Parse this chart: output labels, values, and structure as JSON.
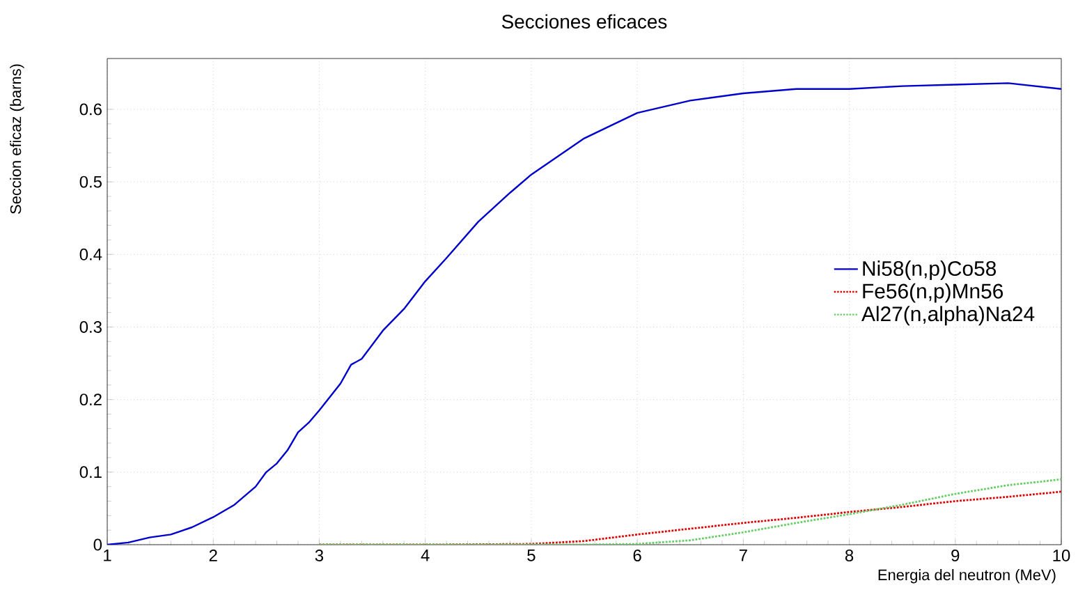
{
  "chart_data": {
    "type": "line",
    "title": "Secciones eficaces",
    "xlabel": "Energia del neutron (MeV)",
    "ylabel": "Seccion eficaz (barns)",
    "xlim": [
      1,
      10
    ],
    "ylim": [
      0,
      0.67
    ],
    "xticks": [
      1,
      2,
      3,
      4,
      5,
      6,
      7,
      8,
      9,
      10
    ],
    "yticks": [
      0,
      0.1,
      0.2,
      0.3,
      0.4,
      0.5,
      0.6
    ],
    "grid": true,
    "legend": "right",
    "marker": "none",
    "series": [
      {
        "name": "Ni58(n,p)Co58",
        "color": "#0000cc",
        "line_style": "solid",
        "x": [
          1,
          1.2,
          1.4,
          1.6,
          1.8,
          2,
          2.2,
          2.4,
          2.5,
          2.6,
          2.7,
          2.8,
          2.9,
          3,
          3.2,
          3.3,
          3.4,
          3.6,
          3.8,
          4,
          4.2,
          4.5,
          4.8,
          5,
          5.5,
          6,
          6.5,
          7,
          7.5,
          8,
          8.5,
          9,
          9.5,
          10
        ],
        "values": [
          0,
          0.003,
          0.01,
          0.014,
          0.024,
          0.038,
          0.055,
          0.08,
          0.1,
          0.112,
          0.13,
          0.155,
          0.168,
          0.185,
          0.222,
          0.248,
          0.256,
          0.295,
          0.325,
          0.363,
          0.395,
          0.445,
          0.485,
          0.51,
          0.56,
          0.595,
          0.612,
          0.622,
          0.628,
          0.628,
          0.632,
          0.634,
          0.636,
          0.628
        ]
      },
      {
        "name": "Fe56(n,p)Mn56",
        "color": "#dd0000",
        "line_style": "dotted",
        "x": [
          3,
          4,
          5,
          5.5,
          6,
          6.5,
          7,
          7.5,
          8,
          8.5,
          9,
          9.5,
          10
        ],
        "values": [
          0,
          0,
          0.001,
          0.005,
          0.014,
          0.022,
          0.03,
          0.037,
          0.045,
          0.052,
          0.06,
          0.066,
          0.073
        ]
      },
      {
        "name": "Al27(n,alpha)Na24",
        "color": "#66cc66",
        "line_style": "dotted",
        "x": [
          3,
          5.5,
          6,
          6.5,
          7,
          7.5,
          8,
          8.5,
          9,
          9.5,
          10
        ],
        "values": [
          0,
          0,
          0.001,
          0.006,
          0.017,
          0.03,
          0.042,
          0.055,
          0.07,
          0.082,
          0.09
        ]
      }
    ]
  }
}
